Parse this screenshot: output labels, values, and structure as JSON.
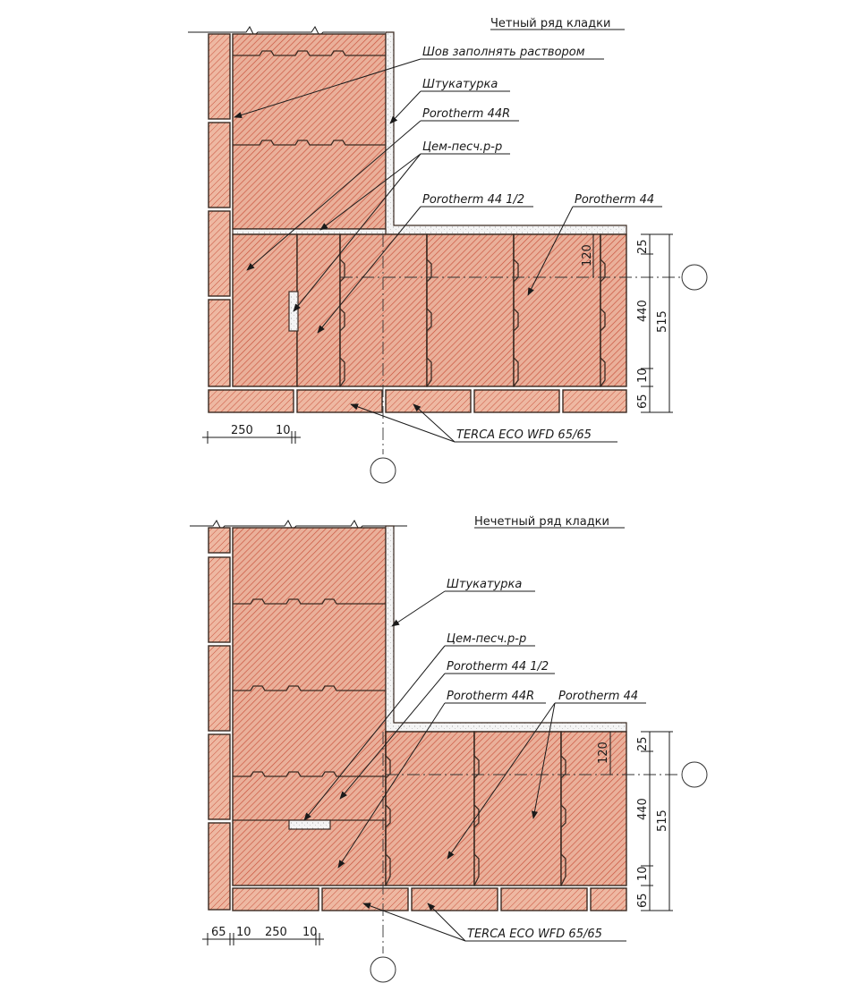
{
  "colors": {
    "block_fill": "#e9ad98",
    "hatch": "#c8503a",
    "outline": "#3a2a22",
    "plaster": "#f2f2f2"
  },
  "top": {
    "title": "Четный ряд кладки",
    "labels": {
      "seam": "Шов заполнять раствором",
      "plaster": "Штукатурка",
      "p44r": "Porotherm 44R",
      "mortar": "Цем-песч.р-р",
      "p44half": "Porotherm 44 1/2",
      "p44": "Porotherm 44",
      "terca": "TERCA ECO WFD 65/65"
    },
    "dims": {
      "d120": "120",
      "d25": "25",
      "d440": "440",
      "d515": "515",
      "d10": "10",
      "d65": "65",
      "b250": "250",
      "b10": "10"
    }
  },
  "bottom": {
    "title": "Нечетный ряд кладки",
    "labels": {
      "plaster": "Штукатурка",
      "mortar": "Цем-песч.р-р",
      "p44half": "Porotherm 44 1/2",
      "p44r": "Porotherm 44R",
      "p44": "Porotherm 44",
      "terca": "TERCA ECO WFD 65/65"
    },
    "dims": {
      "d120": "120",
      "d25": "25",
      "d440": "440",
      "d515": "515",
      "d10": "10",
      "d65": "65",
      "b65": "65",
      "b10a": "10",
      "b250": "250",
      "b10b": "10"
    }
  }
}
